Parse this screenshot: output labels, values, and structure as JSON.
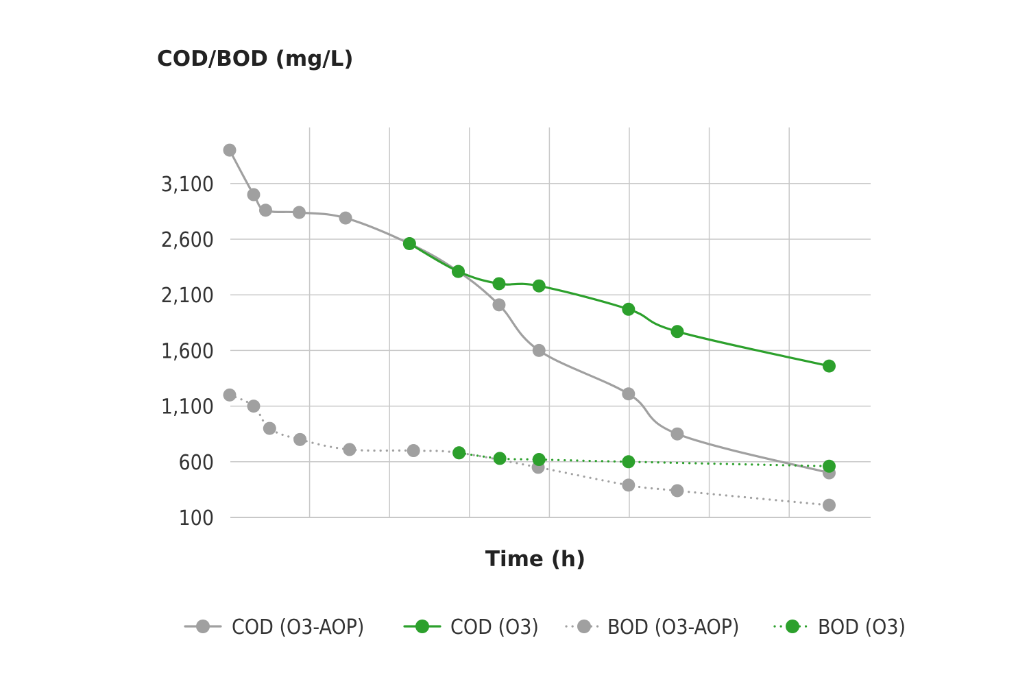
{
  "chart_data": {
    "type": "line",
    "title": "COD/BOD (mg/L)",
    "xlabel": "Time (h)",
    "ylabel": "COD/BOD (mg/L)",
    "ylim": [
      100,
      3600
    ],
    "xlim": [
      0,
      8
    ],
    "y_ticks": [
      100,
      600,
      1100,
      1600,
      2100,
      2600,
      3100
    ],
    "y_tick_labels": [
      "100",
      "600",
      "1,100",
      "1,600",
      "2,100",
      "2,600",
      "3,100"
    ],
    "x_gridlines": [
      1,
      2,
      3,
      4,
      5,
      6,
      7
    ],
    "grid": true,
    "legend_position": "bottom",
    "series": [
      {
        "name": "COD (O3-AOP)",
        "color": "#a0a0a0",
        "style": "solid",
        "x": [
          0,
          0.3,
          0.45,
          0.87,
          1.45,
          2.25,
          2.86,
          3.37,
          3.87,
          4.99,
          5.6,
          7.5
        ],
        "y": [
          3400,
          3000,
          2860,
          2840,
          2790,
          2560,
          2310,
          2010,
          1600,
          1210,
          850,
          500
        ]
      },
      {
        "name": "COD (O3)",
        "color": "#2ca02c",
        "style": "solid",
        "x": [
          2.25,
          2.86,
          3.37,
          3.87,
          4.99,
          5.6,
          7.5
        ],
        "y": [
          2560,
          2310,
          2200,
          2180,
          1970,
          1770,
          1460
        ]
      },
      {
        "name": "BOD (O3-AOP)",
        "color": "#a0a0a0",
        "style": "dotted",
        "x": [
          0,
          0.3,
          0.5,
          0.88,
          1.5,
          2.3,
          2.87,
          3.86,
          4.99,
          5.6,
          7.5
        ],
        "y": [
          1200,
          1100,
          900,
          800,
          710,
          700,
          680,
          550,
          390,
          340,
          210
        ]
      },
      {
        "name": "BOD (O3)",
        "color": "#2ca02c",
        "style": "dotted",
        "x": [
          2.87,
          3.38,
          3.87,
          4.99,
          7.5
        ],
        "y": [
          680,
          630,
          620,
          600,
          560
        ]
      }
    ]
  }
}
